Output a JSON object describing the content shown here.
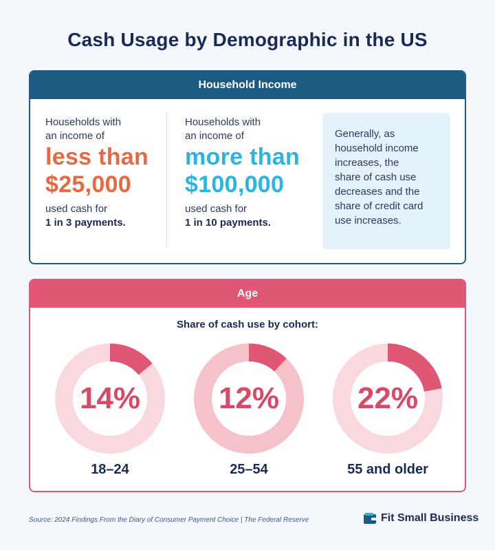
{
  "title": "Cash Usage by Demographic in the US",
  "income": {
    "header": "Household Income",
    "low": {
      "line1": "Households with",
      "line2": "an income of",
      "big1": "less than",
      "big2": "$25,000",
      "line3": "used cash for",
      "line4": "1 in 3 payments."
    },
    "high": {
      "line1": "Households with",
      "line2": "an income of",
      "big1": "more than",
      "big2": "$100,000",
      "line3": "used cash for",
      "line4": "1 in 10 payments."
    },
    "note_lines": [
      "Generally, as",
      "household income",
      "increases, the",
      "share of cash use",
      "decreases and the",
      "share of credit card",
      "use increases."
    ]
  },
  "age": {
    "header": "Age",
    "subtitle": "Share of cash use by cohort:",
    "cohorts": [
      {
        "label": "18–24",
        "percent_text": "14%",
        "value": 14
      },
      {
        "label": "25–54",
        "percent_text": "12%",
        "value": 12
      },
      {
        "label": "55 and older",
        "percent_text": "22%",
        "value": 22
      }
    ]
  },
  "colors": {
    "navy": "#1d5a82",
    "pink": "#e05776",
    "orange": "#e46a43",
    "cyan": "#2bb5de",
    "ring_light": "#fad9de",
    "ring_mid": "#f5c2ca",
    "segment": "#e05776"
  },
  "footer": {
    "source": "Source: 2024 Findings From the Diary of Consumer Payment Choice | The Federal Reserve",
    "brand": "Fit Small Business"
  }
}
